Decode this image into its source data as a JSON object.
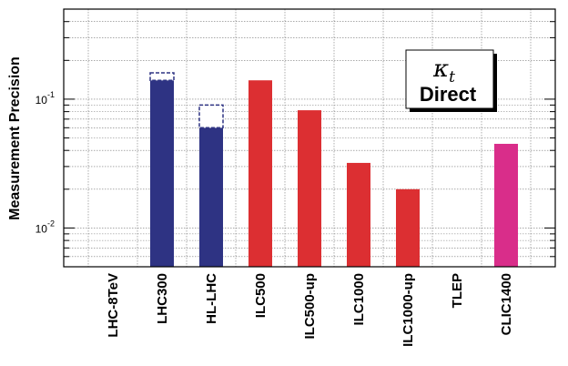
{
  "chart_data": {
    "type": "bar",
    "categories": [
      "LHC-8TeV",
      "LHC300",
      "HL-LHC",
      "ILC500",
      "ILC500-up",
      "ILC1000",
      "ILC1000-up",
      "TLEP",
      "CLIC1400"
    ],
    "values": [
      null,
      0.14,
      0.06,
      0.14,
      0.082,
      0.032,
      0.02,
      null,
      0.045
    ],
    "error_boxes": [
      null,
      [
        0.14,
        0.16
      ],
      [
        0.06,
        0.09
      ],
      null,
      null,
      null,
      null,
      null,
      null
    ],
    "bar_colors": [
      "#2e3383",
      "#2e3383",
      "#2e3383",
      "#dc2f32",
      "#dc2f32",
      "#dc2f32",
      "#dc2f32",
      "#dc2f32",
      "#d92d8a"
    ],
    "ylabel": "Measurement Precision",
    "yscale": "log",
    "ylim": [
      0.005,
      0.5
    ],
    "y_ticks": [
      {
        "value": 0.01,
        "base": "10",
        "exp": "-2"
      },
      {
        "value": 0.1,
        "base": "10",
        "exp": "-1"
      }
    ],
    "grid": true,
    "legend_box": {
      "symbol": "κ",
      "subscript": "t",
      "title": "Direct",
      "position": "top-right"
    }
  }
}
